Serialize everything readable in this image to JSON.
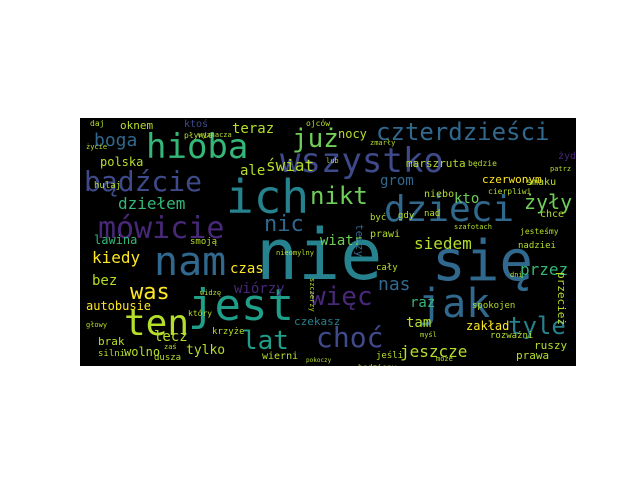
{
  "palette": {
    "background": "#000000",
    "page": "#ffffff",
    "colors": [
      "#440154",
      "#482878",
      "#3e4a89",
      "#31688e",
      "#26828e",
      "#1f9e89",
      "#35b779",
      "#6ece58",
      "#b5de2b",
      "#fde725"
    ]
  },
  "words": [
    {
      "text": "nie",
      "color": "#26828e"
    },
    {
      "text": "się",
      "color": "#31688e"
    },
    {
      "text": "ich",
      "color": "#26828e"
    },
    {
      "text": "jest",
      "color": "#1f9e89"
    },
    {
      "text": "wszystko",
      "color": "#3e4a89"
    },
    {
      "text": "hioba",
      "color": "#35b779"
    },
    {
      "text": "nam",
      "color": "#31688e"
    },
    {
      "text": "dzieci",
      "color": "#31688e"
    },
    {
      "text": "jak",
      "color": "#31688e"
    },
    {
      "text": "ten",
      "color": "#b5de2b"
    },
    {
      "text": "mówicie",
      "color": "#482878"
    },
    {
      "text": "bądźcie",
      "color": "#3e4a89"
    },
    {
      "text": "czterdzieści",
      "color": "#31688e"
    },
    {
      "text": "już",
      "color": "#6ece58"
    },
    {
      "text": "choć",
      "color": "#3e4a89"
    },
    {
      "text": "lat",
      "color": "#1f9e89"
    },
    {
      "text": "tyle",
      "color": "#26828e"
    },
    {
      "text": "więc",
      "color": "#482878"
    },
    {
      "text": "nikt",
      "color": "#6ece58"
    },
    {
      "text": "was",
      "color": "#fde725"
    },
    {
      "text": "boga",
      "color": "#31688e"
    },
    {
      "text": "kiedy",
      "color": "#fde725"
    },
    {
      "text": "dziełem",
      "color": "#35b779"
    },
    {
      "text": "świat",
      "color": "#b5de2b"
    },
    {
      "text": "teraz",
      "color": "#b5de2b"
    },
    {
      "text": "nic",
      "color": "#31688e"
    },
    {
      "text": "ale",
      "color": "#b5de2b"
    },
    {
      "text": "siedem",
      "color": "#b5de2b"
    },
    {
      "text": "przez",
      "color": "#35b779"
    },
    {
      "text": "żyły",
      "color": "#6ece58"
    },
    {
      "text": "jeszcze",
      "color": "#b5de2b"
    },
    {
      "text": "kto",
      "color": "#6ece58"
    },
    {
      "text": "wiatr",
      "color": "#6ece58"
    },
    {
      "text": "grom",
      "color": "#31688e"
    },
    {
      "text": "nas",
      "color": "#31688e"
    },
    {
      "text": "tam",
      "color": "#b5de2b"
    },
    {
      "text": "raz",
      "color": "#35b779"
    },
    {
      "text": "zakład",
      "color": "#fde725"
    },
    {
      "text": "lecz",
      "color": "#b5de2b"
    },
    {
      "text": "bez",
      "color": "#b5de2b"
    },
    {
      "text": "czas",
      "color": "#fde725"
    },
    {
      "text": "wiórzy",
      "color": "#482878"
    },
    {
      "text": "tylko",
      "color": "#b5de2b"
    },
    {
      "text": "polska",
      "color": "#b5de2b"
    },
    {
      "text": "lawina",
      "color": "#35b779"
    },
    {
      "text": "autobusie",
      "color": "#fde725"
    },
    {
      "text": "wolno",
      "color": "#b5de2b"
    },
    {
      "text": "nocy",
      "color": "#b5de2b"
    },
    {
      "text": "czerwonym",
      "color": "#fde725"
    },
    {
      "text": "marszruta",
      "color": "#b5de2b"
    },
    {
      "text": "oknem",
      "color": "#b5de2b"
    },
    {
      "text": "ktoś",
      "color": "#3e4a89"
    },
    {
      "text": "przecież",
      "color": "#b5de2b"
    },
    {
      "text": "ruszy",
      "color": "#b5de2b"
    },
    {
      "text": "brak",
      "color": "#b5de2b"
    },
    {
      "text": "prawa",
      "color": "#b5de2b"
    },
    {
      "text": "wierni",
      "color": "#b5de2b"
    },
    {
      "text": "czekasz",
      "color": "#26828e"
    },
    {
      "text": "chce",
      "color": "#b5de2b"
    },
    {
      "text": "niebo",
      "color": "#b5de2b"
    },
    {
      "text": "teczy",
      "color": "#31688e"
    },
    {
      "text": "spokojen",
      "color": "#b5de2b"
    },
    {
      "text": "rozważni",
      "color": "#b5de2b"
    },
    {
      "text": "nadziei",
      "color": "#b5de2b"
    },
    {
      "text": "prawi",
      "color": "#b5de2b"
    },
    {
      "text": "cały",
      "color": "#b5de2b"
    },
    {
      "text": "smaku",
      "color": "#b5de2b"
    },
    {
      "text": "krzyże",
      "color": "#b5de2b"
    },
    {
      "text": "dusza",
      "color": "#b5de2b"
    },
    {
      "text": "silni",
      "color": "#b5de2b"
    },
    {
      "text": "jeśli",
      "color": "#b5de2b"
    },
    {
      "text": "nad",
      "color": "#b5de2b"
    },
    {
      "text": "gdy",
      "color": "#b5de2b"
    },
    {
      "text": "być",
      "color": "#b5de2b"
    },
    {
      "text": "hulaj",
      "color": "#b5de2b"
    },
    {
      "text": "smoją",
      "color": "#b5de2b"
    },
    {
      "text": "będzie",
      "color": "#b5de2b"
    },
    {
      "text": "cierpliwi",
      "color": "#b5de2b"
    },
    {
      "text": "jesteśmy",
      "color": "#b5de2b"
    },
    {
      "text": "płynie",
      "color": "#b5de2b"
    },
    {
      "text": "daj",
      "color": "#b5de2b"
    },
    {
      "text": "ojców",
      "color": "#b5de2b"
    },
    {
      "text": "który",
      "color": "#b5de2b"
    },
    {
      "text": "zmarły",
      "color": "#b5de2b"
    },
    {
      "text": "będzieny",
      "color": "#b5de2b"
    },
    {
      "text": "może",
      "color": "#b5de2b"
    },
    {
      "text": "wyznacza",
      "color": "#b5de2b"
    },
    {
      "text": "patrz",
      "color": "#b5de2b"
    },
    {
      "text": "żyd",
      "color": "#482878"
    },
    {
      "text": "szafotach",
      "color": "#b5de2b"
    },
    {
      "text": "lub",
      "color": "#b5de2b"
    },
    {
      "text": "szczerzy",
      "color": "#b5de2b"
    },
    {
      "text": "nieomylny",
      "color": "#b5de2b"
    },
    {
      "text": "widzę",
      "color": "#b5de2b"
    },
    {
      "text": "życie",
      "color": "#b5de2b"
    },
    {
      "text": "głowy",
      "color": "#b5de2b"
    },
    {
      "text": "pokoczy",
      "color": "#b5de2b"
    },
    {
      "text": "zaś",
      "color": "#b5de2b"
    },
    {
      "text": "myśl",
      "color": "#b5de2b"
    },
    {
      "text": "dni",
      "color": "#b5de2b"
    }
  ]
}
